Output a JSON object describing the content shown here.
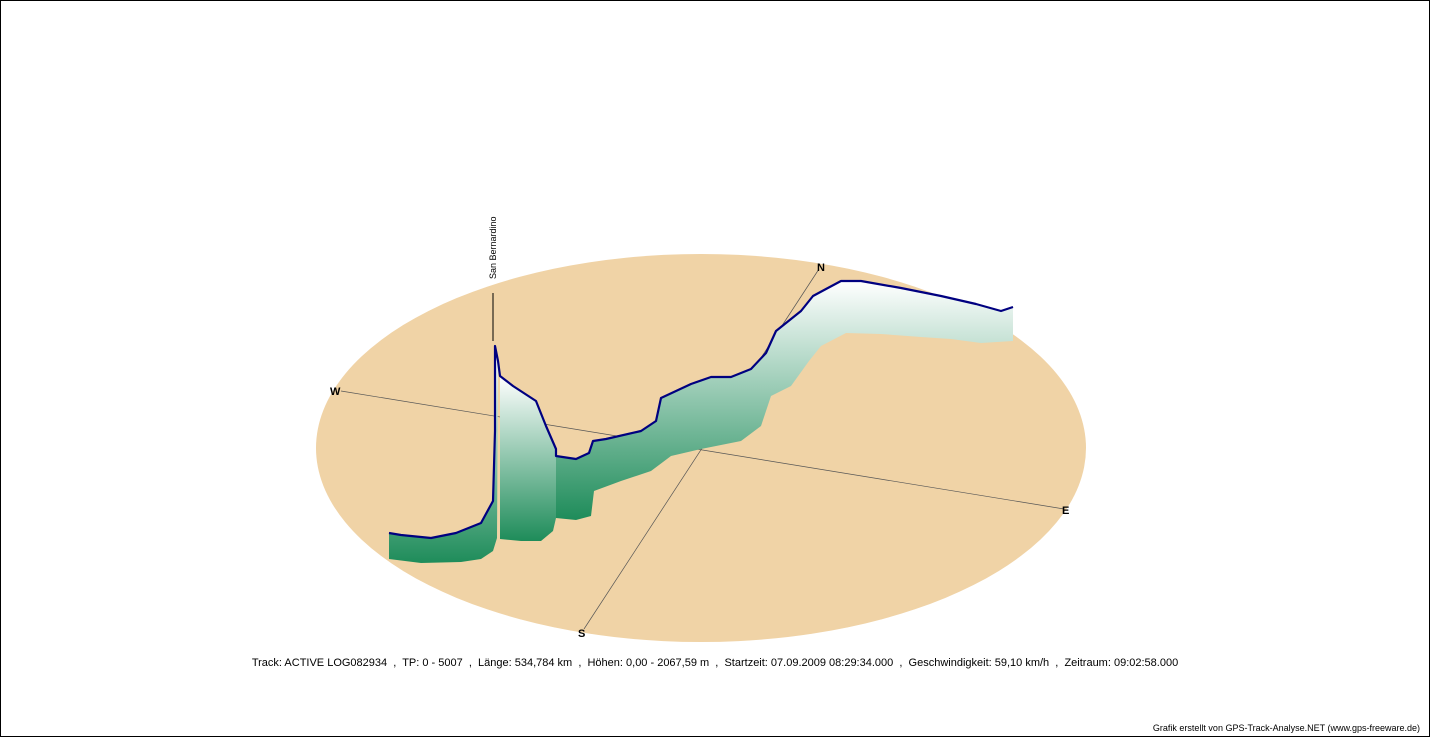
{
  "chart_data": {
    "type": "area",
    "title": "",
    "xlabel": "",
    "ylabel": "",
    "compass": {
      "north": "N",
      "south": "S",
      "east": "E",
      "west": "W"
    },
    "annotations": [
      {
        "label": "San Bernardino"
      }
    ],
    "colors": {
      "ground": "#f0d3a6",
      "track": "#000080",
      "wall_top": "#1e8c5a",
      "wall_bottom": "#ffffff"
    },
    "caption": "Track: ACTIVE LOG082934  ,  TP: 0 - 5007  ,  Länge: 534,784 km  ,  Höhen: 0,00 - 2067,59 m  ,  Startzeit: 07.09.2009 08:29:34.000  ,  Geschwindigkeit: 59,10 km/h  ,  Zeitraum: 09:02:58.000",
    "credit": "Grafik erstellt von GPS-Track-Analyse.NET (www.gps-freeware.de)"
  }
}
